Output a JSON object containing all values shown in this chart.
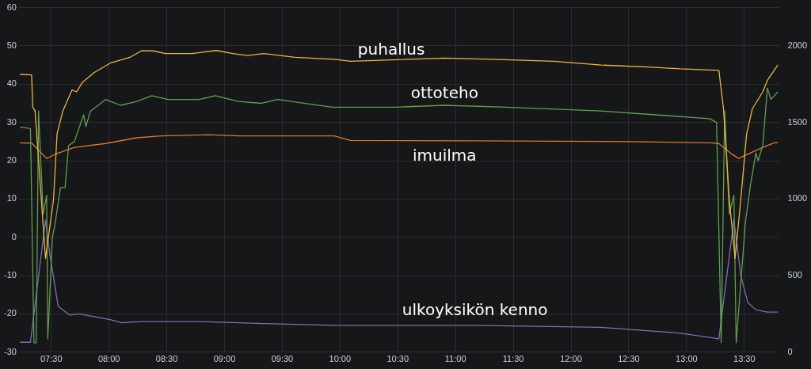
{
  "chart_data": {
    "type": "line",
    "xlim": [
      7.22,
      13.8
    ],
    "xticks": [
      {
        "value": 7.5,
        "label": "07:30"
      },
      {
        "value": 8,
        "label": "08:00"
      },
      {
        "value": 8.5,
        "label": "08:30"
      },
      {
        "value": 9,
        "label": "09:00"
      },
      {
        "value": 9.5,
        "label": "09:30"
      },
      {
        "value": 10,
        "label": "10:00"
      },
      {
        "value": 10.5,
        "label": "10:30"
      },
      {
        "value": 11,
        "label": "11:00"
      },
      {
        "value": 11.5,
        "label": "11:30"
      },
      {
        "value": 12,
        "label": "12:00"
      },
      {
        "value": 12.5,
        "label": "12:30"
      },
      {
        "value": 13,
        "label": "13:00"
      },
      {
        "value": 13.5,
        "label": "13:30"
      }
    ],
    "ylim": [
      -30,
      60
    ],
    "yticks": [
      -30,
      -20,
      -10,
      0,
      10,
      20,
      30,
      40,
      50,
      60
    ],
    "y2lim": [
      0,
      2250
    ],
    "y2ticks": [
      0,
      500,
      1000,
      1500,
      2000
    ],
    "grid": true,
    "legend": false,
    "marker": "none",
    "line_style": "solid",
    "series": [
      {
        "name": "puhallus",
        "color": "#eab839",
        "x": [
          7.23,
          7.33,
          7.34,
          7.36,
          7.45,
          7.52,
          7.55,
          7.6,
          7.68,
          7.72,
          7.77,
          7.87,
          8.01,
          8.18,
          8.28,
          8.38,
          8.49,
          8.72,
          8.93,
          9.07,
          9.2,
          9.34,
          9.61,
          9.95,
          10.09,
          10.9,
          11.31,
          11.85,
          12.26,
          12.67,
          12.94,
          13.28,
          13.32,
          13.37,
          13.42,
          13.47,
          13.52,
          13.57,
          13.66,
          13.7,
          13.79
        ],
        "values": [
          42.6,
          42.4,
          34,
          33,
          -5.5,
          10,
          27,
          33,
          38.5,
          38,
          40.5,
          43,
          45.5,
          47,
          48.7,
          48.7,
          48,
          48,
          48.8,
          48,
          47.5,
          48,
          47,
          46.5,
          46,
          46.8,
          46.5,
          46,
          45,
          44.5,
          44,
          43.6,
          33.6,
          10,
          -5.5,
          10,
          27,
          33.6,
          38,
          41,
          45
        ]
      },
      {
        "name": "ottoteho",
        "color": "#629e51",
        "axis": "y2",
        "x": [
          7.23,
          7.32,
          7.35,
          7.37,
          7.39,
          7.43,
          7.46,
          7.47,
          7.51,
          7.53,
          7.58,
          7.62,
          7.65,
          7.7,
          7.78,
          7.8,
          7.84,
          7.97,
          8.1,
          8.24,
          8.37,
          8.51,
          8.78,
          8.92,
          9.12,
          9.32,
          9.46,
          9.93,
          10.48,
          10.9,
          11.44,
          12.26,
          12.73,
          13.2,
          13.26,
          13.3,
          13.33,
          13.37,
          13.41,
          13.43,
          13.51,
          13.55,
          13.6,
          13.62,
          13.66,
          13.7,
          13.73,
          13.79
        ],
        "values": [
          1470,
          1460,
          62,
          62,
          1575,
          900,
          1025,
          87,
          750,
          825,
          1075,
          1075,
          1350,
          1375,
          1550,
          1475,
          1575,
          1650,
          1612,
          1637,
          1675,
          1650,
          1650,
          1675,
          1637,
          1625,
          1650,
          1600,
          1600,
          1612,
          1600,
          1575,
          1550,
          1525,
          1500,
          62,
          1575,
          900,
          1025,
          62,
          850,
          1075,
          1300,
          1250,
          1350,
          1725,
          1650,
          1700
        ]
      },
      {
        "name": "imuilma",
        "color": "#e0752d",
        "x": [
          7.23,
          7.33,
          7.46,
          7.52,
          7.56,
          7.7,
          7.97,
          8.24,
          8.45,
          8.86,
          9.13,
          9.95,
          10.09,
          11.17,
          12.53,
          13.21,
          13.28,
          13.38,
          13.45,
          13.55,
          13.66,
          13.76,
          13.79
        ],
        "values": [
          24.7,
          24.6,
          20.6,
          21.5,
          22,
          23.5,
          24.5,
          26,
          26.5,
          26.8,
          26.5,
          26.5,
          25.3,
          25.2,
          25,
          24.7,
          24.5,
          22,
          20.6,
          22,
          23.5,
          24.7,
          24.7
        ]
      },
      {
        "name": "ulkoyksikön kenno",
        "color": "#806eb7",
        "x": [
          7.23,
          7.32,
          7.45,
          7.49,
          7.56,
          7.66,
          7.74,
          8.01,
          8.11,
          8.28,
          8.79,
          9.34,
          9.95,
          11.17,
          12.26,
          12.94,
          13.28,
          13.41,
          13.47,
          13.53,
          13.6,
          13.7,
          13.79
        ],
        "values": [
          -27.4,
          -27.4,
          4.5,
          -5,
          -18,
          -20.3,
          -20,
          -21.5,
          -22.3,
          -22,
          -22,
          -22.5,
          -23,
          -23,
          -23.5,
          -25,
          -26.5,
          4.6,
          -10,
          -17,
          -18.9,
          -19.5,
          -19.5
        ]
      }
    ]
  }
}
